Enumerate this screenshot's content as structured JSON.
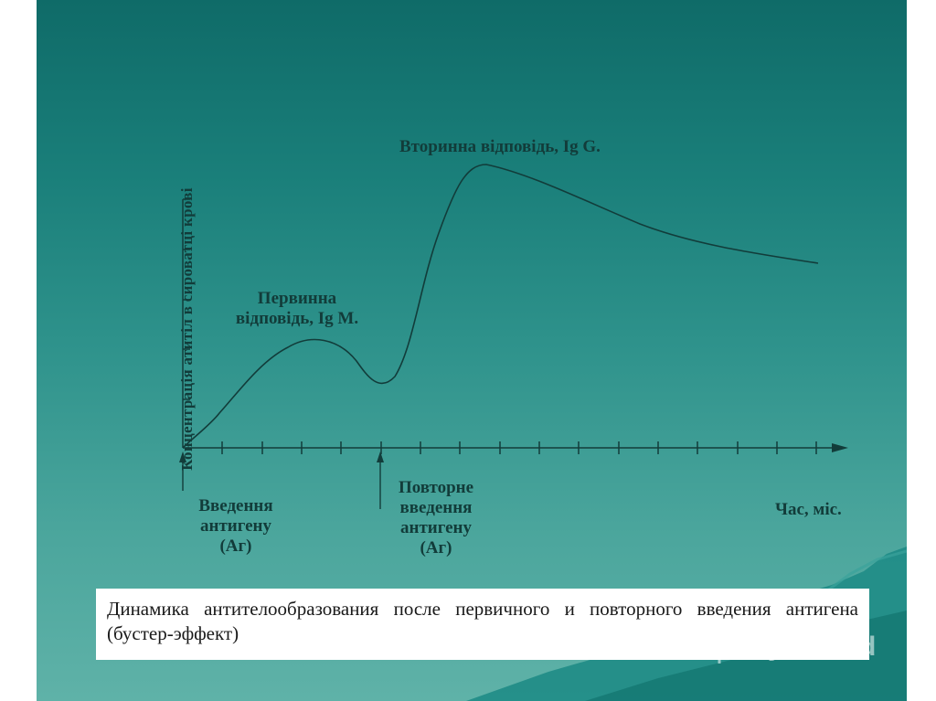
{
  "diagram": {
    "y_axis_label": "Концентрація атитіл в сироватці крові",
    "x_axis_label": "Час, міс.",
    "primary_response_label_line1": "Первинна",
    "primary_response_label_line2": "відповідь, Ig M.",
    "secondary_response_label": "Вторинна відповідь, Ig G.",
    "first_injection_line1": "Введення",
    "first_injection_line2": "антигену",
    "first_injection_line3": "(Аг)",
    "second_injection_line1": "Повторне",
    "second_injection_line2": "введення",
    "second_injection_line3": "антигену",
    "second_injection_line4": "(Аг)"
  },
  "caption": "Динамика антителообразования после первичного и повторного введения антигена (бустер-эффект)",
  "watermark": "MyShared",
  "colors": {
    "background_top": "#0f6b68",
    "background_bottom": "#5fb2a8",
    "ink": "#123c3a",
    "caption_background": "#ffffff"
  }
}
